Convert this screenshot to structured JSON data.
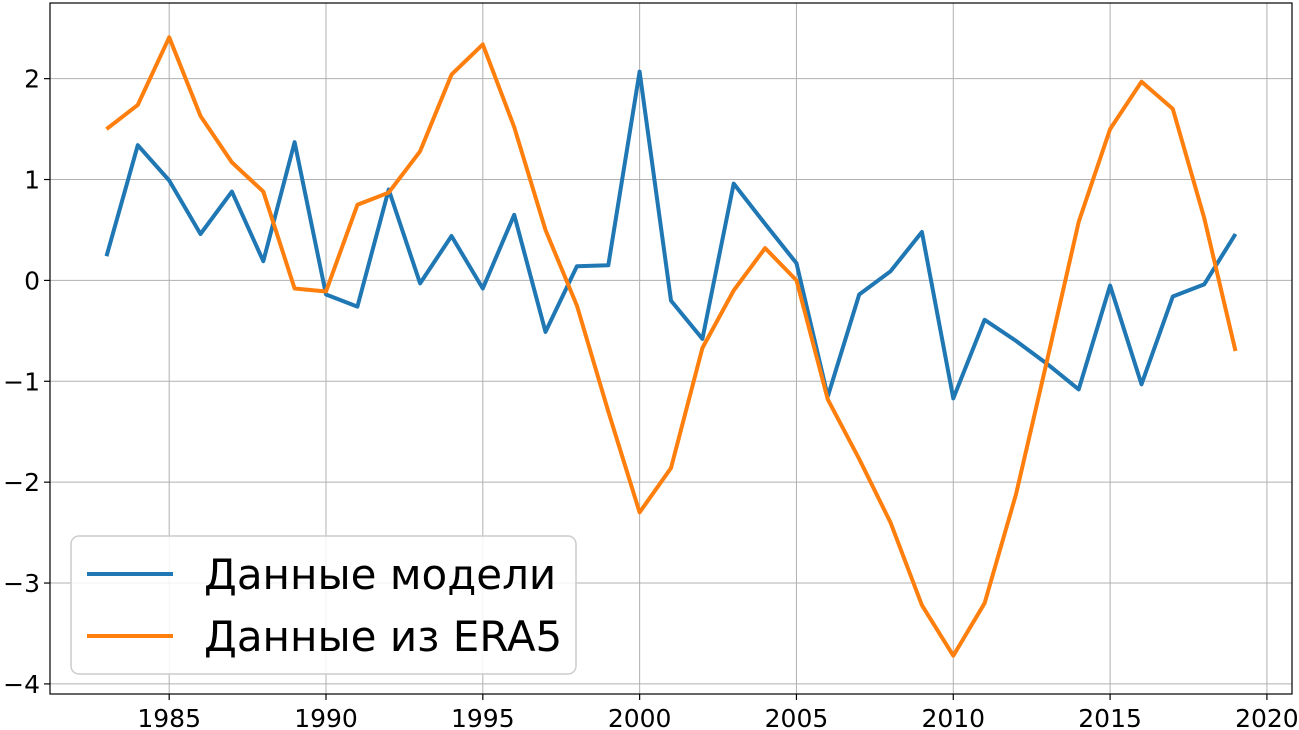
{
  "chart_data": {
    "type": "line",
    "title": "",
    "xlabel": "",
    "ylabel": "",
    "xlim": [
      1981.2,
      2020.8
    ],
    "ylim": [
      -4.1,
      2.75
    ],
    "grid": true,
    "legend_position": "lower-left",
    "x_ticks": [
      1985,
      1990,
      1995,
      2000,
      2005,
      2010,
      2015,
      2020
    ],
    "x_tick_labels": [
      "1985",
      "1990",
      "1995",
      "2000",
      "2005",
      "2010",
      "2015",
      "2020"
    ],
    "y_ticks": [
      -4,
      -3,
      -2,
      -1,
      0,
      1,
      2
    ],
    "y_tick_labels": [
      "−4",
      "−3",
      "−2",
      "−1",
      "0",
      "1",
      "2"
    ],
    "x": [
      1983,
      1984,
      1985,
      1986,
      1987,
      1988,
      1989,
      1990,
      1991,
      1992,
      1993,
      1994,
      1995,
      1996,
      1997,
      1998,
      1999,
      2000,
      2001,
      2002,
      2003,
      2004,
      2005,
      2006,
      2007,
      2008,
      2009,
      2010,
      2011,
      2012,
      2013,
      2014,
      2015,
      2016,
      2017,
      2018,
      2019
    ],
    "series": [
      {
        "name": "Данные модели",
        "color": "#1f77b4",
        "values": [
          0.24,
          1.34,
          0.99,
          0.46,
          0.88,
          0.19,
          1.37,
          -0.14,
          -0.26,
          0.9,
          -0.03,
          0.44,
          -0.08,
          0.65,
          -0.51,
          0.14,
          0.15,
          2.07,
          -0.2,
          -0.58,
          0.96,
          0.56,
          0.17,
          -1.15,
          -0.14,
          0.09,
          0.48,
          -1.17,
          -0.39,
          -0.6,
          -0.83,
          -1.08,
          -0.05,
          -1.03,
          -0.16,
          -0.04,
          0.46
        ]
      },
      {
        "name": "Данные из ERA5",
        "color": "#ff7f0e",
        "values": [
          1.5,
          1.74,
          2.41,
          1.63,
          1.17,
          0.88,
          -0.08,
          -0.11,
          0.75,
          0.87,
          1.28,
          2.04,
          2.34,
          1.52,
          0.5,
          -0.25,
          -1.3,
          -2.3,
          -1.86,
          -0.67,
          -0.1,
          0.32,
          0.0,
          -1.18,
          -1.77,
          -2.4,
          -3.22,
          -3.72,
          -3.2,
          -2.12,
          -0.78,
          0.58,
          1.5,
          1.97,
          1.7,
          0.62,
          -0.7
        ]
      }
    ]
  }
}
